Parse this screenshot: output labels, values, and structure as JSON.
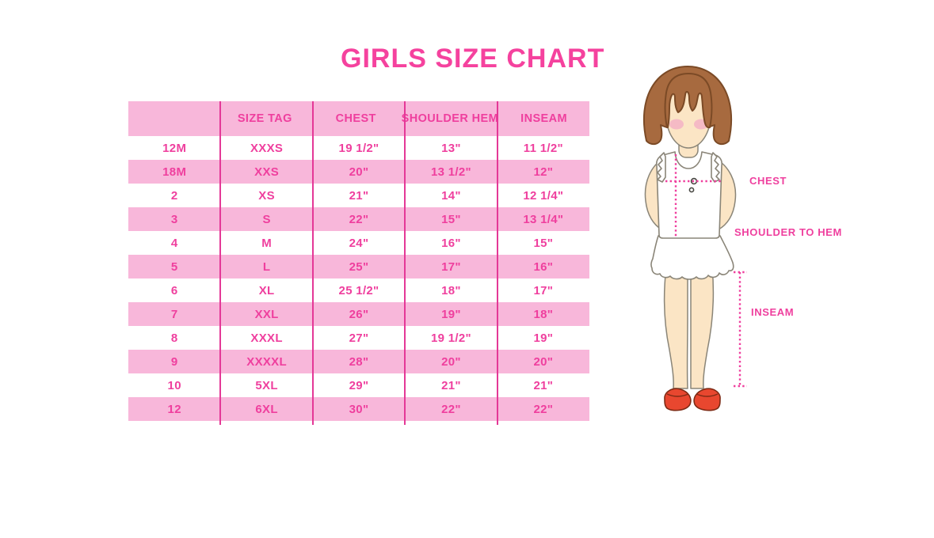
{
  "title": "GIRLS SIZE CHART",
  "chart_data": {
    "type": "table",
    "title": "GIRLS SIZE CHART",
    "columns": [
      "",
      "SIZE TAG",
      "CHEST",
      "SHOULDER HEM",
      "INSEAM"
    ],
    "rows": [
      [
        "12M",
        "XXXS",
        "19 1/2\"",
        "13\"",
        "11 1/2\""
      ],
      [
        "18M",
        "XXS",
        "20\"",
        "13 1/2\"",
        "12\""
      ],
      [
        "2",
        "XS",
        "21\"",
        "14\"",
        "12 1/4\""
      ],
      [
        "3",
        "S",
        "22\"",
        "15\"",
        "13 1/4\""
      ],
      [
        "4",
        "M",
        "24\"",
        "16\"",
        "15\""
      ],
      [
        "5",
        "L",
        "25\"",
        "17\"",
        "16\""
      ],
      [
        "6",
        "XL",
        "25 1/2\"",
        "18\"",
        "17\""
      ],
      [
        "7",
        "XXL",
        "26\"",
        "19\"",
        "18\""
      ],
      [
        "8",
        "XXXL",
        "27\"",
        "19 1/2\"",
        "19\""
      ],
      [
        "9",
        "XXXXL",
        "28\"",
        "20\"",
        "20\""
      ],
      [
        "10",
        "5XL",
        "29\"",
        "21\"",
        "21\""
      ],
      [
        "12",
        "6XL",
        "30\"",
        "22\"",
        "22\""
      ]
    ]
  },
  "diagram": {
    "labels": {
      "chest": "CHEST",
      "shoulder_to_hem": "SHOULDER TO HEM",
      "inseam": "INSEAM"
    }
  },
  "colors": {
    "accent": "#EF3F9E",
    "accent_strong": "#F5429E",
    "row_pink": "#F8B7DA",
    "divider": "#E43897",
    "hair": "#A76A3F",
    "hair_line": "#7B4A26",
    "skin": "#FBE5C5",
    "line": "#8A8578",
    "shoe": "#E8472F",
    "shoe_line": "#7E2B15",
    "blush": "#F4AFC4"
  }
}
